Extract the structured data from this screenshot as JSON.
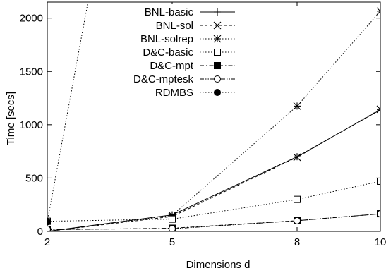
{
  "chart_data": {
    "type": "line",
    "title": "",
    "xlabel": "Dimensions d",
    "ylabel": "Time [secs]",
    "xlim": [
      2,
      10
    ],
    "ylim": [
      0,
      2150
    ],
    "xticks": [
      2,
      5,
      8,
      10
    ],
    "yticks": [
      0,
      500,
      1000,
      1500,
      2000
    ],
    "grid": false,
    "legend_position": "top-left",
    "series": [
      {
        "name": "BNL-basic",
        "marker": "plus",
        "dash": "solid",
        "x": [
          2,
          5,
          8,
          10
        ],
        "y": [
          0,
          155,
          700,
          1140
        ]
      },
      {
        "name": "BNL-sol",
        "marker": "cross",
        "dash": "dashed",
        "x": [
          2,
          5,
          8,
          10
        ],
        "y": [
          0,
          140,
          695,
          1145
        ]
      },
      {
        "name": "BNL-solrep",
        "marker": "star",
        "dash": "dotted",
        "x": [
          2,
          5,
          8,
          10
        ],
        "y": [
          0,
          150,
          1175,
          2065
        ]
      },
      {
        "name": "D&C-basic",
        "marker": "square-open",
        "dash": "dotted",
        "x": [
          2,
          5,
          8,
          10
        ],
        "y": [
          95,
          115,
          300,
          470
        ]
      },
      {
        "name": "D&C-mpt",
        "marker": "square-filled",
        "dash": "dashdot",
        "x": [
          2,
          5,
          8,
          10
        ],
        "y": [
          15,
          30,
          100,
          165
        ]
      },
      {
        "name": "D&C-mptesk",
        "marker": "circle-open",
        "dash": "dashdotdot",
        "x": [
          2,
          5,
          8,
          10
        ],
        "y": [
          20,
          25,
          100,
          165
        ]
      },
      {
        "name": "RDMBS",
        "marker": "circle-filled",
        "dash": "dotted",
        "x": [
          2,
          3
        ],
        "y": [
          90,
          2200
        ]
      }
    ]
  }
}
